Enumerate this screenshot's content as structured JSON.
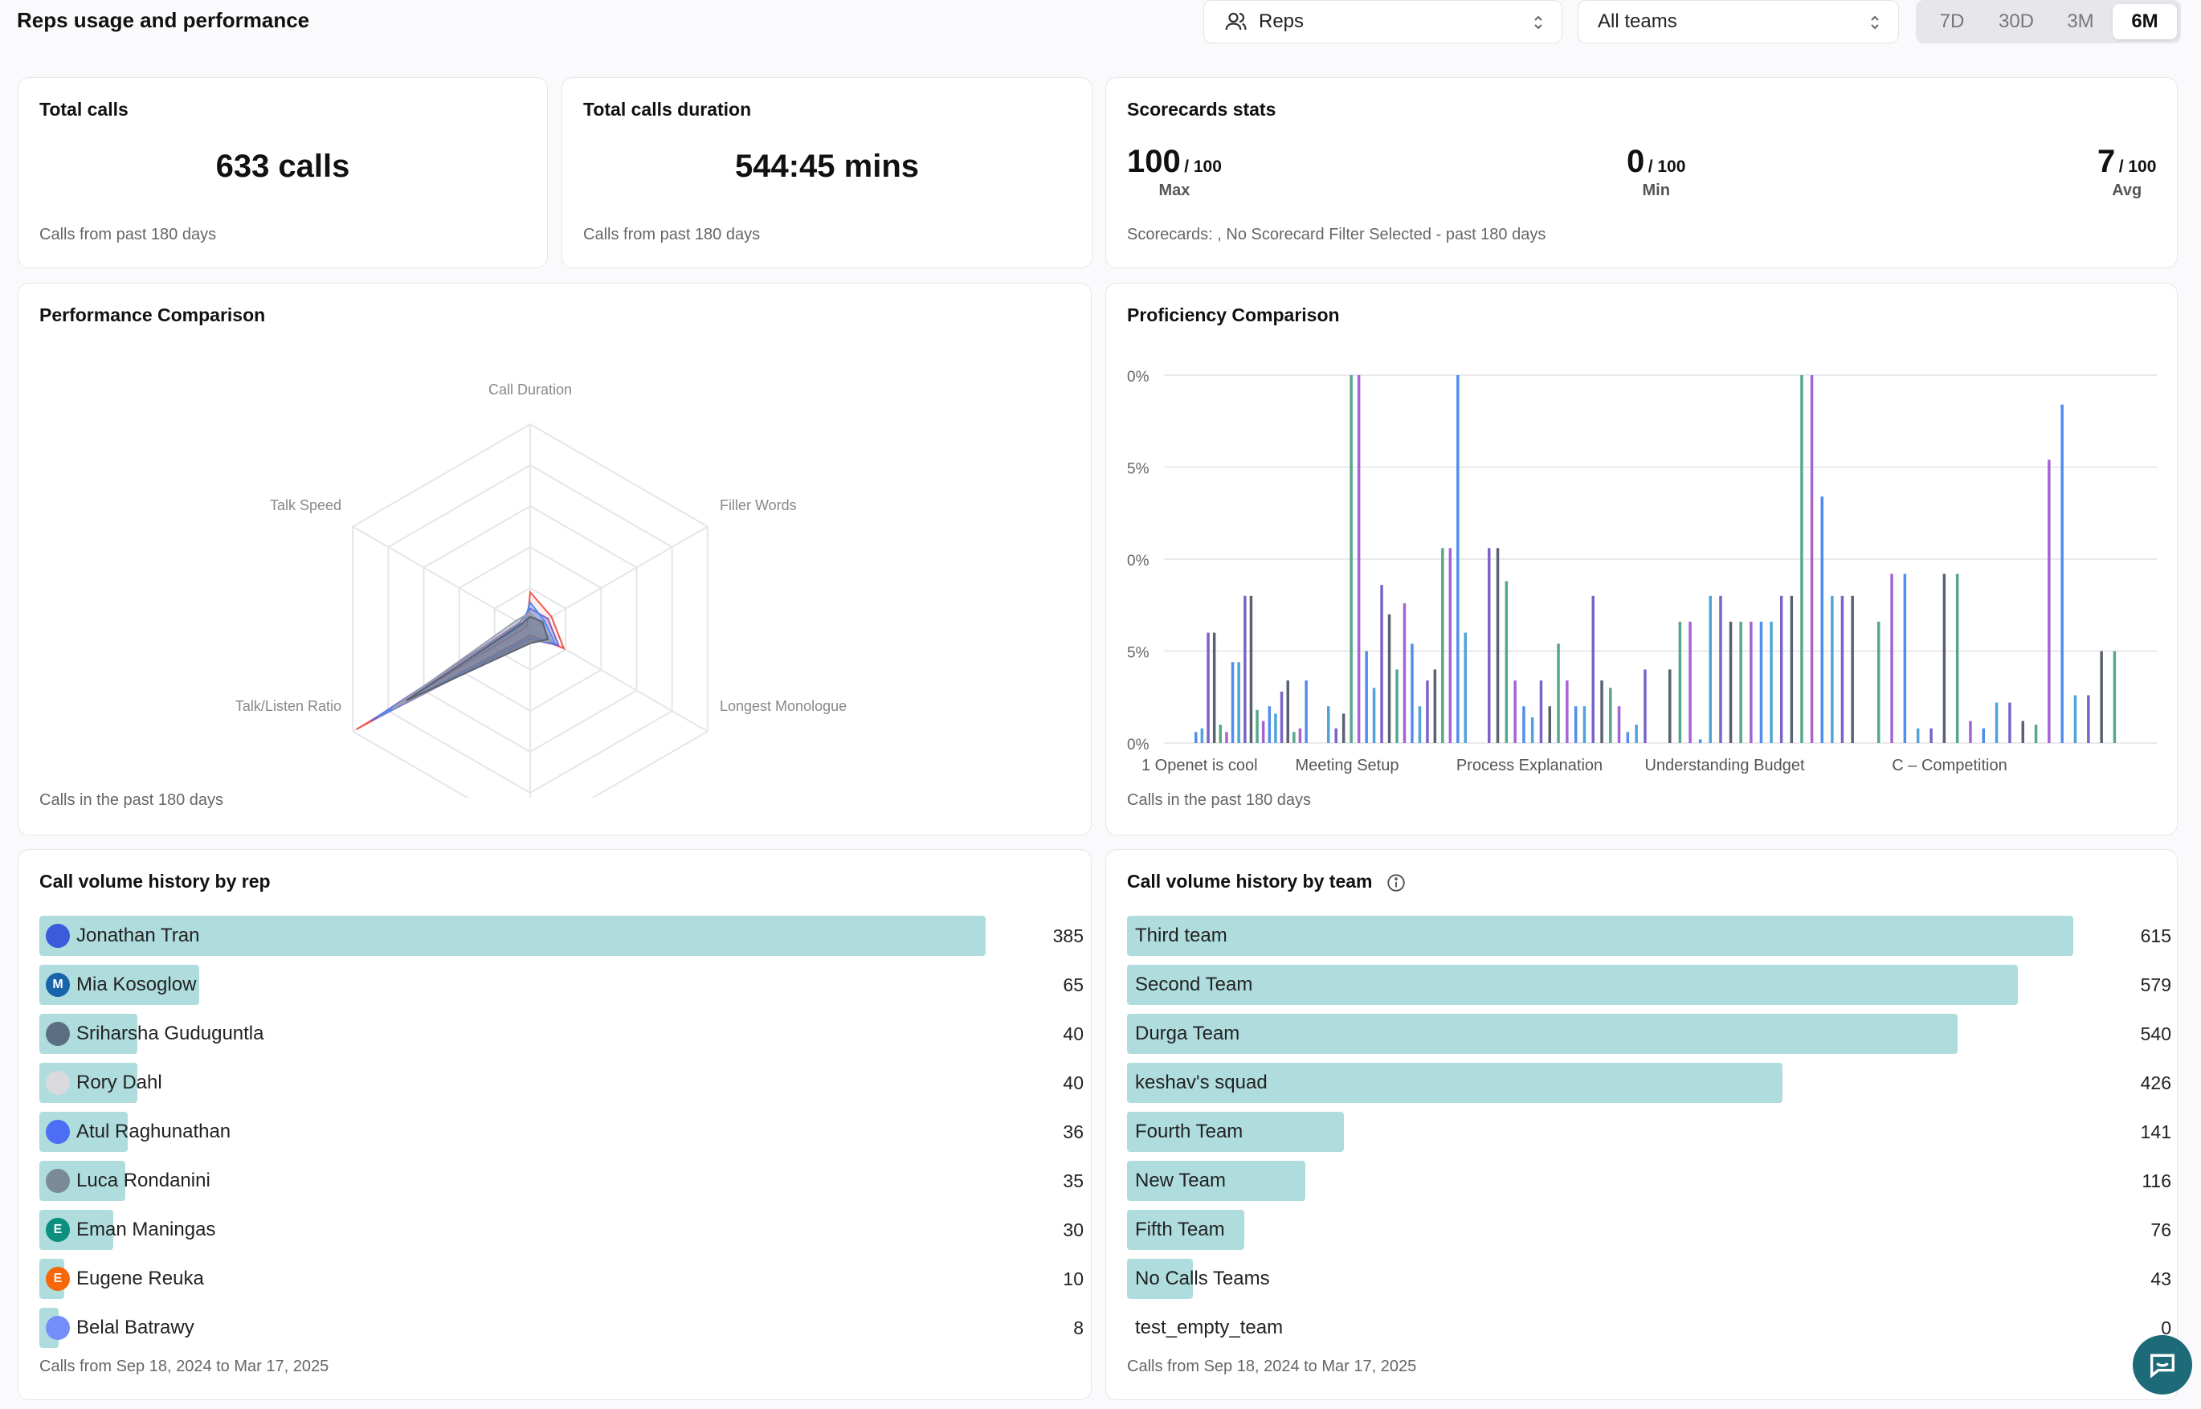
{
  "page": {
    "title": "Reps usage and performance"
  },
  "filters": {
    "reps_select": "Reps",
    "teams_select": "All teams",
    "ranges": [
      "7D",
      "30D",
      "3M",
      "6M"
    ],
    "active_range": "6M"
  },
  "total_calls": {
    "title": "Total calls",
    "value": "633 calls",
    "footer": "Calls from past 180 days"
  },
  "total_duration": {
    "title": "Total calls duration",
    "value": "544:45 mins",
    "footer": "Calls from past 180 days"
  },
  "scorecards": {
    "title": "Scorecards stats",
    "max": {
      "value": "100",
      "denom": "/ 100",
      "label": "Max"
    },
    "min": {
      "value": "0",
      "denom": "/ 100",
      "label": "Min"
    },
    "avg": {
      "value": "7",
      "denom": "/ 100",
      "label": "Avg"
    },
    "footer": "Scorecards: , No Scorecard Filter Selected - past 180 days"
  },
  "performance": {
    "title": "Performance Comparison",
    "footer": "Calls in the past 180 days",
    "axes": [
      "Call Duration",
      "Filler Words",
      "Longest Monologue",
      "",
      "Talk/Listen Ratio",
      "Talk Speed"
    ],
    "colors": [
      "#ef5a4f",
      "#7b63c9",
      "#4f8df0",
      "#9aa0aa",
      "#5a6270"
    ]
  },
  "proficiency": {
    "title": "Proficiency Comparison",
    "footer": "Calls in the past 180 days",
    "y_ticks": [
      "0%",
      "5%",
      "0%",
      "5%",
      "0%"
    ],
    "x_labels": [
      "1 Openet is cool",
      "Meeting Setup",
      "Process Explanation",
      "Understanding Budget",
      "C – Competition"
    ],
    "colors": [
      "#4f8df0",
      "#4fa3d9",
      "#7b63c9",
      "#5a6270",
      "#56a88c",
      "#a464d6"
    ]
  },
  "chart_data": {
    "type": "bar",
    "title": "Proficiency Comparison",
    "categories": [
      "1 Openet is cool",
      "Meeting Setup",
      "Process Explanation",
      "Understanding Budget",
      "C – Competition"
    ],
    "y_tick_labels": [
      "0%",
      "5%",
      "0%",
      "5%",
      "0%"
    ],
    "bars_fraction_of_max": [
      0.03,
      0.04,
      0.3,
      0.3,
      0.05,
      0.03,
      0.22,
      0.22,
      0.4,
      0.4,
      0.09,
      0.06,
      0.1,
      0.08,
      0.14,
      0.17,
      0.03,
      0.04,
      0.17,
      0.1,
      0.04,
      0.08,
      1.0,
      1.0,
      0.25,
      0.15,
      0.43,
      0.35,
      0.2,
      0.38,
      0.27,
      0.1,
      0.17,
      0.2,
      0.53,
      0.53,
      1.0,
      0.3,
      0.53,
      0.53,
      0.44,
      0.17,
      0.1,
      0.07,
      0.17,
      0.1,
      0.27,
      0.17,
      0.1,
      0.1,
      0.4,
      0.17,
      0.15,
      0.1,
      0.03,
      0.05,
      0.2,
      0.2,
      0.33,
      0.33,
      0.01,
      0.4,
      0.4,
      0.33,
      0.33,
      0.33,
      0.33,
      0.33,
      0.4,
      0.4,
      1.0,
      1.0,
      0.67,
      0.4,
      0.4,
      0.4,
      0.33,
      0.46,
      0.46,
      0.04,
      0.04,
      0.46,
      0.46,
      0.06,
      0.04,
      0.11,
      0.11,
      0.06,
      0.05,
      0.77,
      0.92,
      0.13,
      0.13,
      0.25,
      0.25
    ]
  },
  "volume_by_rep": {
    "title": "Call volume history by rep",
    "footer": "Calls from Sep 18, 2024 to Mar 17, 2025",
    "max": 385,
    "rows": [
      {
        "name": "Jonathan Tran",
        "value": 385,
        "initial": "",
        "color": "#3b5bdb"
      },
      {
        "name": "Mia Kosoglow",
        "value": 65,
        "initial": "M",
        "color": "#1864ab"
      },
      {
        "name": "Sriharsha Guduguntla",
        "value": 40,
        "initial": "",
        "color": "#5c6f82"
      },
      {
        "name": "Rory Dahl",
        "value": 40,
        "initial": "",
        "color": "#d9d9de"
      },
      {
        "name": "Atul Raghunathan",
        "value": 36,
        "initial": "",
        "color": "#4c6ef5"
      },
      {
        "name": "Luca Rondanini",
        "value": 35,
        "initial": "",
        "color": "#7a8a99"
      },
      {
        "name": "Eman Maningas",
        "value": 30,
        "initial": "E",
        "color": "#0c8f7f"
      },
      {
        "name": "Eugene Reuka",
        "value": 10,
        "initial": "E",
        "color": "#f76707"
      },
      {
        "name": "Belal Batrawy",
        "value": 8,
        "initial": "",
        "color": "#748ffc"
      }
    ]
  },
  "volume_by_team": {
    "title": "Call volume history by team",
    "footer": "Calls from Sep 18, 2024 to Mar 17, 2025",
    "max": 615,
    "rows": [
      {
        "name": "Third team",
        "value": 615
      },
      {
        "name": "Second Team",
        "value": 579
      },
      {
        "name": "Durga Team",
        "value": 540
      },
      {
        "name": "keshav's squad",
        "value": 426
      },
      {
        "name": "Fourth Team",
        "value": 141
      },
      {
        "name": "New Team",
        "value": 116
      },
      {
        "name": "Fifth Team",
        "value": 76
      },
      {
        "name": "No Calls Teams",
        "value": 43
      },
      {
        "name": "test_empty_team",
        "value": 0
      }
    ]
  }
}
